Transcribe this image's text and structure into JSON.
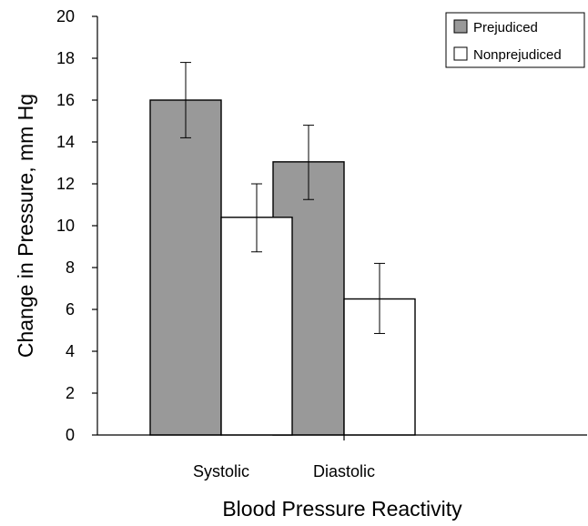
{
  "chart_data": {
    "type": "bar",
    "title": "",
    "xlabel": "Blood Pressure Reactivity",
    "ylabel": "Change in Pressure, mm Hg",
    "categories": [
      "Systolic",
      "Diastolic"
    ],
    "ylim": [
      0,
      20
    ],
    "yticks": [
      0,
      2,
      4,
      6,
      8,
      10,
      12,
      14,
      16,
      18,
      20
    ],
    "grid": false,
    "legend_position": "top-right",
    "series": [
      {
        "name": "Prejudiced",
        "color": "#999999",
        "values": [
          16.0,
          13.05
        ],
        "error_low": [
          14.2,
          11.25
        ],
        "error_high": [
          17.8,
          14.8
        ]
      },
      {
        "name": "Nonprejudiced",
        "color": "#ffffff",
        "values": [
          10.4,
          6.5
        ],
        "error_low": [
          8.75,
          4.85
        ],
        "error_high": [
          12.0,
          8.2
        ]
      }
    ]
  }
}
